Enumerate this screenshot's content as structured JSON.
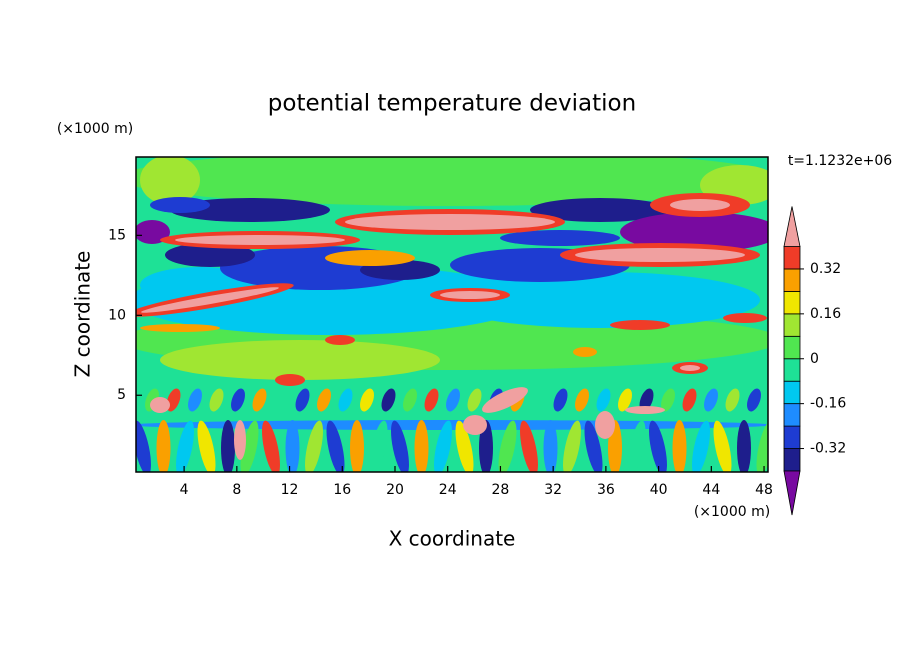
{
  "chart_data": {
    "type": "contour",
    "title": "potential temperature deviation",
    "xlabel": "X coordinate",
    "ylabel": "Z coordinate",
    "x_unit": "(×1000 m)",
    "y_unit": "(×1000 m)",
    "time_label": "t=1.1232e+06",
    "xlim": [
      0.35,
      48.3
    ],
    "xticks": [
      4,
      8,
      12,
      16,
      20,
      24,
      28,
      32,
      36,
      40,
      44,
      48
    ],
    "ylim": [
      0.2,
      19.9
    ],
    "yticks": [
      5,
      10,
      15
    ],
    "levels": [
      -0.4,
      -0.32,
      -0.24,
      -0.16,
      -0.08,
      0,
      0.08,
      0.16,
      0.24,
      0.32,
      0.4
    ],
    "colors": [
      "#780aa0",
      "#1e1e8c",
      "#1e3cd2",
      "#1e8cff",
      "#00c8f0",
      "#1ee196",
      "#50e650",
      "#a0e632",
      "#f0e600",
      "#faa000",
      "#f03c28",
      "#f0a0a0"
    ],
    "colorbar_ticks": [
      0.32,
      0.16,
      0,
      -0.16,
      -0.32
    ]
  }
}
